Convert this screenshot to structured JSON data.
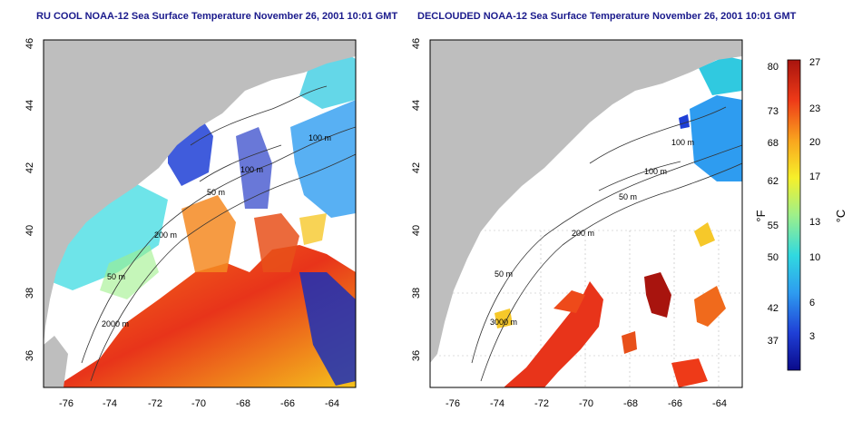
{
  "panels": [
    {
      "title": "RU COOL NOAA-12 Sea Surface Temperature November 26, 2001 10:01 GMT",
      "x_ticks": [
        "-76",
        "-74",
        "-72",
        "-70",
        "-68",
        "-66",
        "-64"
      ],
      "y_ticks": [
        "46",
        "44",
        "42",
        "40",
        "38",
        "36"
      ],
      "contours": [
        "200 m",
        "100 m",
        "50 m",
        "50 m",
        "2000 m",
        "100 m"
      ]
    },
    {
      "title": "DECLOUDED NOAA-12 Sea Surface Temperature November 26, 2001 10:01 GMT",
      "x_ticks": [
        "-76",
        "-74",
        "-72",
        "-70",
        "-68",
        "-66",
        "-64"
      ],
      "y_ticks": [
        "46",
        "44",
        "42",
        "40",
        "38",
        "36"
      ],
      "contours": [
        "100 m",
        "100 m",
        "50 m",
        "200 m",
        "50 m",
        "3000 m"
      ]
    }
  ],
  "colorbar": {
    "f_label": "°F",
    "c_label": "°C",
    "f_ticks": [
      "80",
      "73",
      "68",
      "62",
      "55",
      "50",
      "42",
      "37"
    ],
    "c_ticks": [
      "27",
      "23",
      "20",
      "17",
      "13",
      "10",
      "6",
      "3"
    ],
    "colors": [
      "#0a0a8a",
      "#1f3fd6",
      "#2e9cf0",
      "#30d9e0",
      "#9ef08a",
      "#f6f02a",
      "#f9a51e",
      "#ee3a18",
      "#a8140e"
    ]
  }
}
